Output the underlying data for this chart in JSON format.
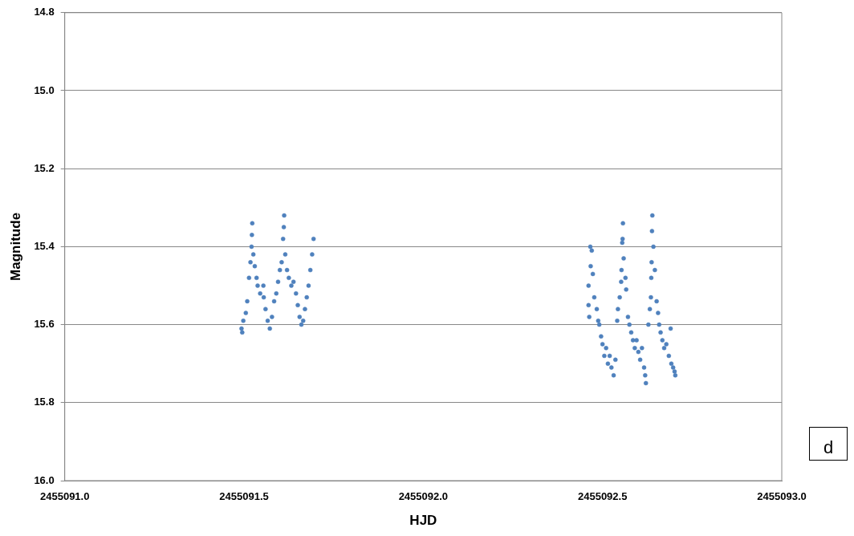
{
  "chart_data": {
    "type": "scatter",
    "xlabel": "HJD",
    "ylabel": "Magnitude",
    "annotations": [
      "d"
    ],
    "marker": "circle",
    "grid": "y",
    "legend": false,
    "xlim": [
      2455091.0,
      2455093.0
    ],
    "xticks": [
      {
        "value": 2455091.0,
        "label": "2455091.0"
      },
      {
        "value": 2455091.5,
        "label": "2455091.5"
      },
      {
        "value": 2455092.0,
        "label": "2455092.0"
      },
      {
        "value": 2455092.5,
        "label": "2455092.5"
      },
      {
        "value": 2455093.0,
        "label": "2455093.0"
      }
    ],
    "ylim": [
      16.0,
      14.8
    ],
    "yticks": [
      {
        "value": 14.8,
        "label": "14.8"
      },
      {
        "value": 15.0,
        "label": "15.0"
      },
      {
        "value": 15.2,
        "label": "15.2"
      },
      {
        "value": 15.4,
        "label": "15.4"
      },
      {
        "value": 15.6,
        "label": "15.6"
      },
      {
        "value": 15.8,
        "label": "15.8"
      },
      {
        "value": 16.0,
        "label": "16.0"
      }
    ],
    "series": [
      {
        "color": "#4f81bd",
        "x": [
          2455091.493,
          2455091.495,
          2455091.498,
          2455091.505,
          2455091.509,
          2455091.514,
          2455091.518,
          2455091.521,
          2455091.522,
          2455091.523,
          2455091.526,
          2455091.53,
          2455091.535,
          2455091.538,
          2455091.545,
          2455091.554,
          2455091.555,
          2455091.56,
          2455091.566,
          2455091.572,
          2455091.578,
          2455091.584,
          2455091.59,
          2455091.595,
          2455091.6,
          2455091.605,
          2455091.609,
          2455091.611,
          2455091.612,
          2455091.615,
          2455091.62,
          2455091.625,
          2455091.632,
          2455091.638,
          2455091.645,
          2455091.65,
          2455091.655,
          2455091.66,
          2455091.665,
          2455091.67,
          2455091.675,
          2455091.68,
          2455091.685,
          2455091.69,
          2455091.694,
          2455092.461,
          2455092.461,
          2455092.463,
          2455092.466,
          2455092.467,
          2455092.47,
          2455092.473,
          2455092.477,
          2455092.484,
          2455092.488,
          2455092.491,
          2455092.496,
          2455092.5,
          2455092.505,
          2455092.51,
          2455092.515,
          2455092.52,
          2455092.525,
          2455092.531,
          2455092.536,
          2455092.541,
          2455092.543,
          2455092.548,
          2455092.552,
          2455092.553,
          2455092.555,
          2455092.556,
          2455092.557,
          2455092.559,
          2455092.564,
          2455092.566,
          2455092.571,
          2455092.575,
          2455092.58,
          2455092.585,
          2455092.59,
          2455092.595,
          2455092.6,
          2455092.605,
          2455092.61,
          2455092.616,
          2455092.619,
          2455092.621,
          2455092.628,
          2455092.632,
          2455092.635,
          2455092.636,
          2455092.637,
          2455092.638,
          2455092.639,
          2455092.642,
          2455092.646,
          2455092.651,
          2455092.655,
          2455092.658,
          2455092.662,
          2455092.667,
          2455092.672,
          2455092.678,
          2455092.685,
          2455092.69,
          2455092.692,
          2455092.697,
          2455092.701,
          2455092.703
        ],
        "values": [
          15.61,
          15.62,
          15.59,
          15.57,
          15.54,
          15.48,
          15.44,
          15.4,
          15.37,
          15.34,
          15.42,
          15.45,
          15.48,
          15.5,
          15.52,
          15.5,
          15.53,
          15.56,
          15.59,
          15.61,
          15.58,
          15.54,
          15.52,
          15.49,
          15.46,
          15.44,
          15.38,
          15.35,
          15.32,
          15.42,
          15.46,
          15.48,
          15.5,
          15.49,
          15.52,
          15.55,
          15.58,
          15.6,
          15.59,
          15.56,
          15.53,
          15.5,
          15.46,
          15.42,
          15.38,
          15.5,
          15.55,
          15.58,
          15.4,
          15.45,
          15.41,
          15.47,
          15.53,
          15.56,
          15.59,
          15.6,
          15.63,
          15.65,
          15.68,
          15.66,
          15.7,
          15.68,
          15.71,
          15.73,
          15.69,
          15.59,
          15.56,
          15.53,
          15.49,
          15.46,
          15.39,
          15.38,
          15.34,
          15.43,
          15.48,
          15.51,
          15.58,
          15.6,
          15.62,
          15.64,
          15.66,
          15.64,
          15.67,
          15.69,
          15.66,
          15.71,
          15.73,
          15.75,
          15.6,
          15.56,
          15.53,
          15.48,
          15.44,
          15.36,
          15.32,
          15.4,
          15.46,
          15.54,
          15.57,
          15.6,
          15.62,
          15.64,
          15.66,
          15.65,
          15.68,
          15.61,
          15.7,
          15.71,
          15.72,
          15.73
        ]
      }
    ]
  }
}
